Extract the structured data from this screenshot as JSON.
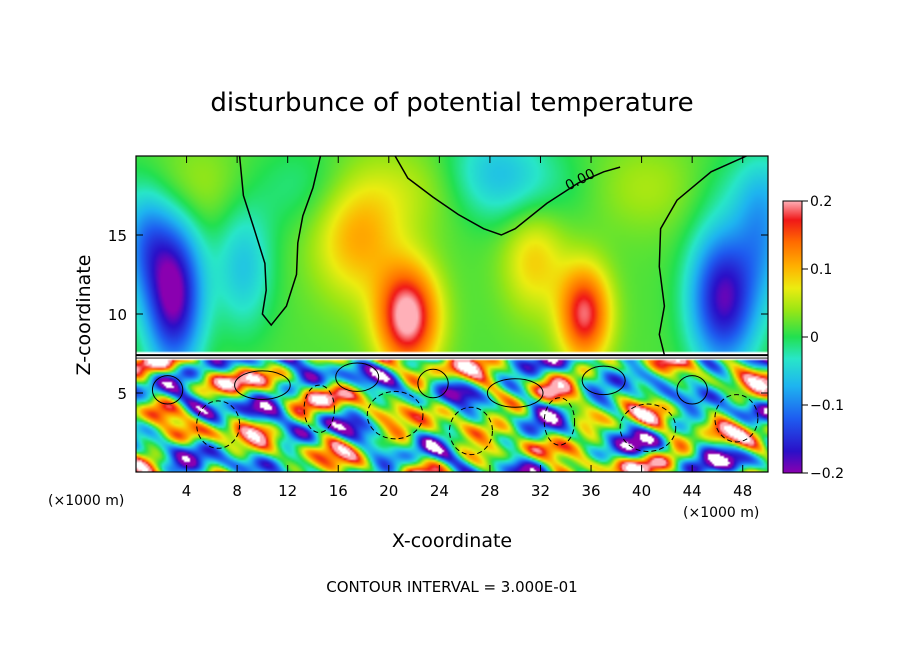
{
  "chart_data": {
    "type": "heatmap",
    "title": "disturbunce of potential temperature",
    "xlabel": "X-coordinate",
    "ylabel": "Z-coordinate",
    "x_unit": "(×1000 m)",
    "x_unit_right": "(×1000 m)",
    "xlim": [
      0,
      50
    ],
    "ylim": [
      0,
      20
    ],
    "x_ticks": [
      4,
      8,
      12,
      16,
      20,
      24,
      28,
      32,
      36,
      40,
      44,
      48
    ],
    "y_ticks": [
      5,
      10,
      15
    ],
    "colorbar": {
      "range": [
        -0.2,
        0.2
      ],
      "tick_labels": [
        "0.2",
        "0.1",
        "0",
        "−0.1",
        "−0.2"
      ],
      "tick_values": [
        0.2,
        0.1,
        0,
        -0.1,
        -0.2
      ]
    },
    "contour_label": "0.00",
    "contour_interval_text": "CONTOUR INTERVAL = 3.000E-01",
    "inversion_height": 7.4,
    "upper_features": [
      {
        "x": 3.0,
        "z": 11.2,
        "sx": 2.2,
        "sz": 4.5,
        "amp": -0.22
      },
      {
        "x": 0.8,
        "z": 14.5,
        "sx": 2.0,
        "sz": 3.5,
        "amp": -0.1
      },
      {
        "x": 8.5,
        "z": 13.0,
        "sx": 2.3,
        "sz": 4.0,
        "amp": -0.07
      },
      {
        "x": 21.5,
        "z": 9.8,
        "sx": 2.4,
        "sz": 3.2,
        "amp": 0.2
      },
      {
        "x": 17.5,
        "z": 15.0,
        "sx": 3.5,
        "sz": 4.0,
        "amp": 0.09
      },
      {
        "x": 35.5,
        "z": 10.0,
        "sx": 2.0,
        "sz": 3.0,
        "amp": 0.17
      },
      {
        "x": 31.5,
        "z": 13.5,
        "sx": 2.5,
        "sz": 3.5,
        "amp": 0.07
      },
      {
        "x": 28.0,
        "z": 19.0,
        "sx": 4.0,
        "sz": 3.0,
        "amp": -0.06
      },
      {
        "x": 46.5,
        "z": 11.0,
        "sx": 2.6,
        "sz": 4.2,
        "amp": -0.2
      },
      {
        "x": 49.5,
        "z": 15.0,
        "sx": 2.0,
        "sz": 4.0,
        "amp": -0.08
      }
    ],
    "zero_contour_1": [
      [
        8.2,
        20
      ],
      [
        8.5,
        17.5
      ],
      [
        9.3,
        15.5
      ],
      [
        10.2,
        13.2
      ],
      [
        10.3,
        11.5
      ],
      [
        10.0,
        10.0
      ],
      [
        10.7,
        9.3
      ],
      [
        11.9,
        10.5
      ],
      [
        12.7,
        12.5
      ],
      [
        12.8,
        14.5
      ],
      [
        13.2,
        16.2
      ],
      [
        14.0,
        18.0
      ],
      [
        14.6,
        20
      ]
    ],
    "zero_contour_2": [
      [
        20.5,
        20
      ],
      [
        21.5,
        18.6
      ],
      [
        23.5,
        17.4
      ],
      [
        25.5,
        16.3
      ],
      [
        27.5,
        15.4
      ],
      [
        28.9,
        15.0
      ],
      [
        30.0,
        15.4
      ],
      [
        32.5,
        17.0
      ],
      [
        35.0,
        18.3
      ],
      [
        37.0,
        19.0
      ],
      [
        38.3,
        19.3
      ]
    ],
    "zero_contour_3": [
      [
        48.3,
        20
      ],
      [
        45.5,
        19.0
      ],
      [
        42.8,
        17.2
      ],
      [
        41.5,
        15.4
      ],
      [
        41.4,
        13.0
      ],
      [
        41.8,
        10.5
      ],
      [
        41.4,
        8.7
      ],
      [
        41.8,
        7.4
      ]
    ]
  }
}
